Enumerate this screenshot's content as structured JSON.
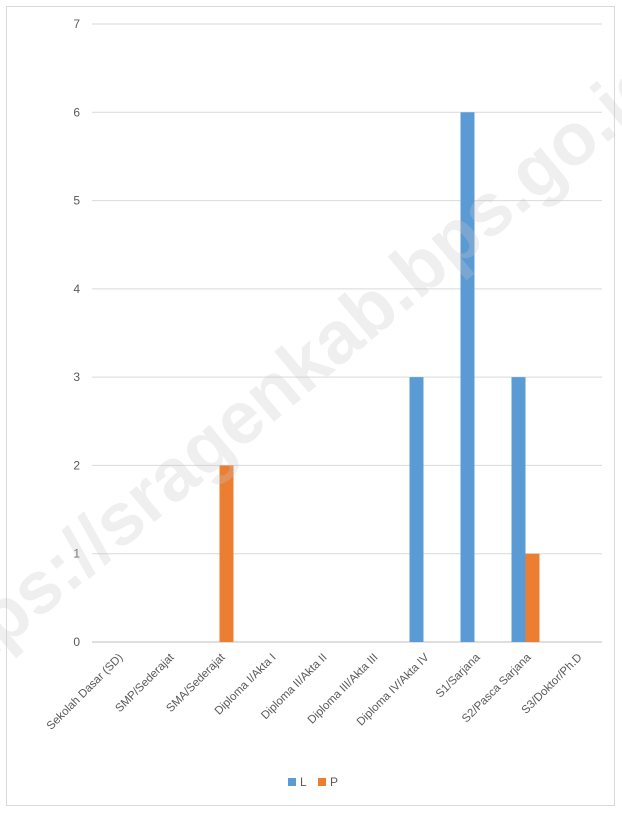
{
  "chart_data": {
    "type": "bar",
    "title": "",
    "xlabel": "",
    "ylabel": "",
    "ylim": [
      0,
      7
    ],
    "yticks": [
      0,
      1,
      2,
      3,
      4,
      5,
      6,
      7
    ],
    "grid": true,
    "legend_position": "bottom",
    "categories": [
      "Sekolah Dasar (SD)",
      "SMP/Sederajat",
      "SMA/Sederajat",
      "Diploma I/Akta I",
      "Diploma II/Akta II",
      "Diploma III/Akta III",
      "Diploma IV/Akta IV",
      "S1/Sarjana",
      "S2/Pasca Sarjana",
      "S3/Doktor/Ph.D"
    ],
    "series": [
      {
        "name": "L",
        "color": "#5b9bd5",
        "values": [
          0,
          0,
          0,
          0,
          0,
          0,
          3,
          6,
          3,
          0
        ]
      },
      {
        "name": "P",
        "color": "#ed7d31",
        "values": [
          0,
          0,
          2,
          0,
          0,
          0,
          0,
          0,
          1,
          0
        ]
      }
    ]
  },
  "watermark": "https://sragenkab.bps.go.id"
}
